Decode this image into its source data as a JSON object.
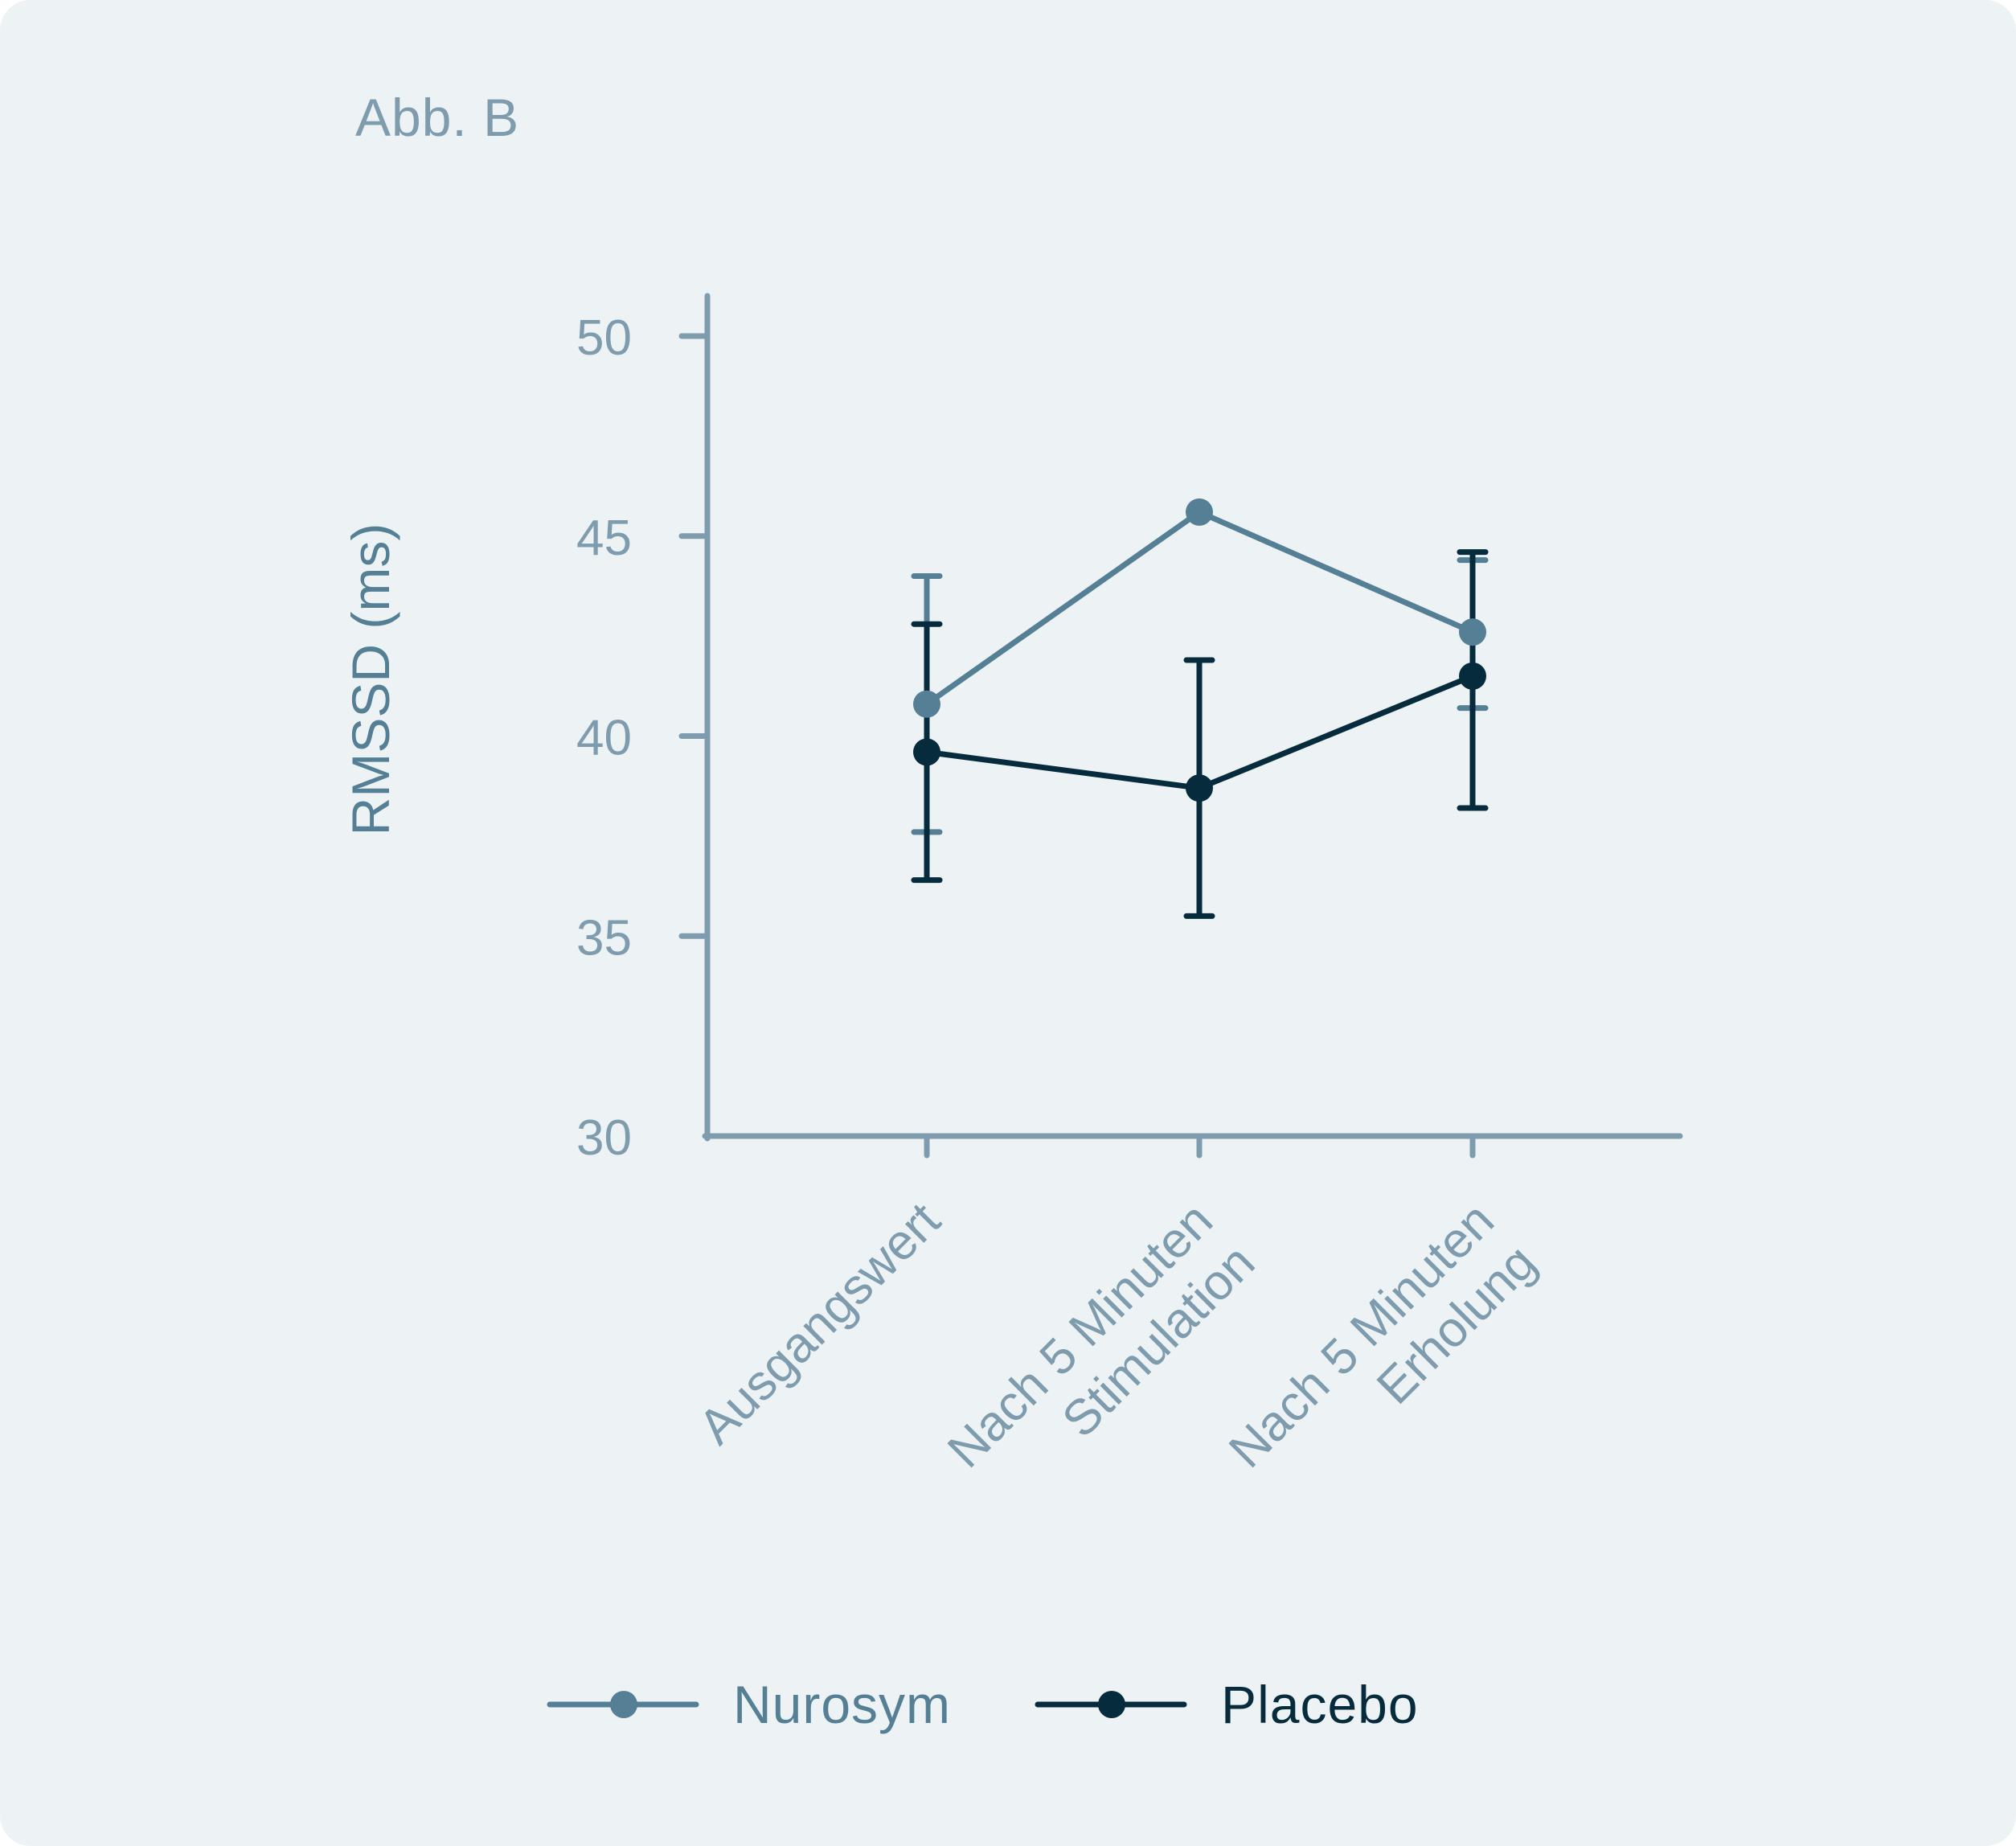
{
  "figure_label": "Abb. B",
  "colors": {
    "background": "#edf3f4",
    "axis": "#7e9cae",
    "nurosym": "#557f95",
    "placebo": "#062b3d"
  },
  "chart_data": {
    "type": "line",
    "title": "",
    "xlabel": "",
    "ylabel": "RMSSD (ms)",
    "ylim": [
      30,
      50
    ],
    "yticks": [
      "30",
      "35",
      "40",
      "45",
      "50"
    ],
    "categories": [
      [
        "Ausgangswert"
      ],
      [
        "Nach 5 Minuten",
        "Stimulation"
      ],
      [
        "Nach 5 Minuten",
        "Erholung"
      ]
    ],
    "series": [
      {
        "name": "Nurosym",
        "values": [
          40.8,
          45.6,
          42.6
        ],
        "error_low": [
          37.6,
          null,
          40.7
        ],
        "error_high": [
          44.0,
          null,
          44.4
        ]
      },
      {
        "name": "Placebo",
        "values": [
          39.6,
          38.7,
          41.5
        ],
        "error_low": [
          36.4,
          35.5,
          38.2
        ],
        "error_high": [
          42.8,
          41.9,
          44.6
        ]
      }
    ],
    "legend_position": "bottom-center",
    "grid": false
  }
}
